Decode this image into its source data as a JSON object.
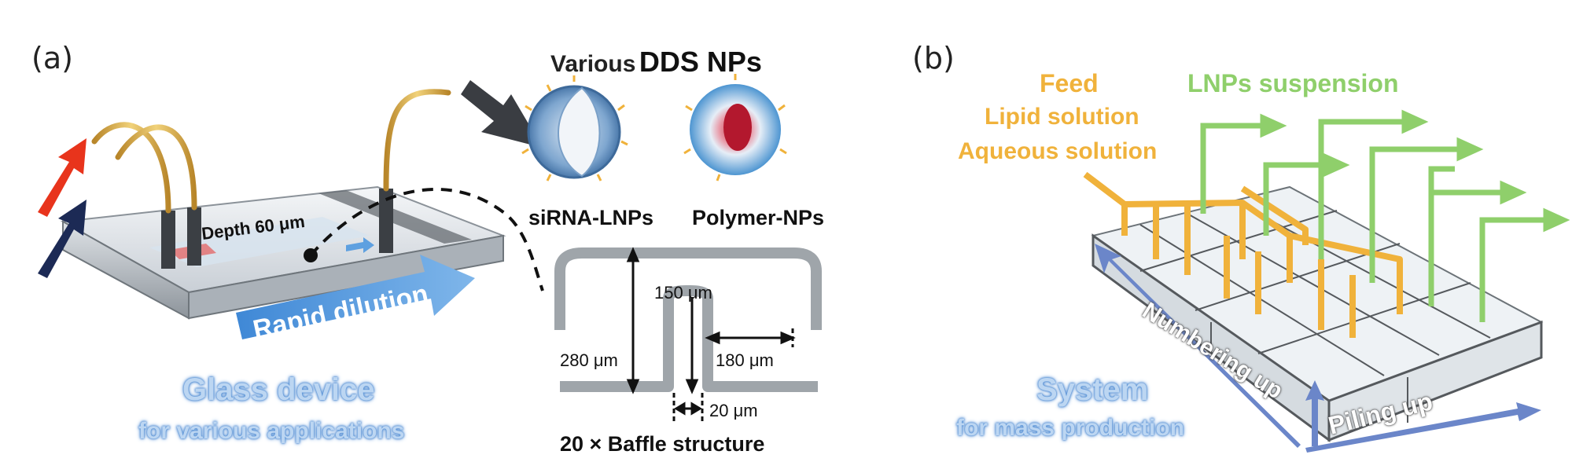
{
  "panel_a": {
    "label": "(a)",
    "depth_label": "Depth 60 μm",
    "arrow_label": "Rapid dilution",
    "caption_main": "Glass device",
    "caption_sub": "for various applications",
    "nps_title_small": "Various",
    "nps_title_big": "DDS NPs",
    "np1_label": "siRNA-LNPs",
    "np2_label": "Polymer-NPs",
    "dim_top": "150 μm",
    "dim_height": "280 μm",
    "dim_gap": "180 μm",
    "dim_width": "20 μm",
    "baffle_caption": "20 × Baffle structure"
  },
  "panel_b": {
    "label": "(b)",
    "feed": "Feed",
    "lipid": "Lipid solution",
    "aqueous": "Aqueous solution",
    "suspension": "LNPs suspension",
    "numbering": "Numbering up",
    "piling": "Piling up",
    "caption_main": "System",
    "caption_sub": "for mass production"
  },
  "colors": {
    "orange": "#f0b23b",
    "green": "#8fcf6b",
    "blue_arrow": "#4a90d9",
    "red_arrow": "#e8341c",
    "navy_arrow": "#1c2a55"
  }
}
